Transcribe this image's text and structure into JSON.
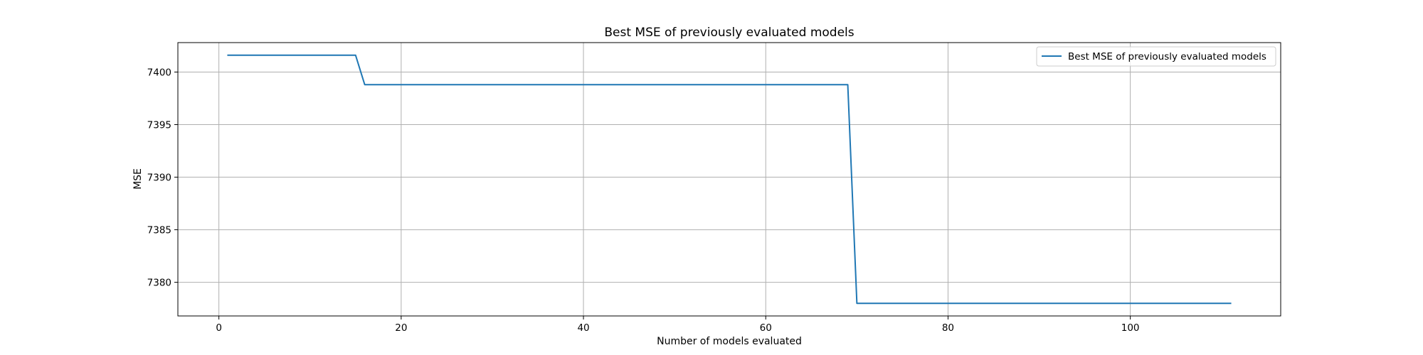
{
  "chart_data": {
    "type": "line",
    "title": "Best MSE of previously evaluated models",
    "xlabel": "Number of models evaluated",
    "ylabel": "MSE",
    "xlim": [
      -4.5,
      116.5
    ],
    "ylim": [
      7376.8,
      7402.8
    ],
    "xticks": [
      0,
      20,
      40,
      60,
      80,
      100
    ],
    "yticks": [
      7380,
      7385,
      7390,
      7395,
      7400
    ],
    "grid": true,
    "legend": "top-right",
    "colors": {
      "line": "#1f77b4",
      "grid": "#b0b0b0",
      "axes": "#000000"
    },
    "series": [
      {
        "name": "Best MSE of previously evaluated models",
        "x": [
          1,
          15,
          16,
          69,
          70,
          111
        ],
        "y": [
          7401.6,
          7401.6,
          7398.8,
          7398.8,
          7378.0,
          7378.0
        ]
      }
    ]
  }
}
